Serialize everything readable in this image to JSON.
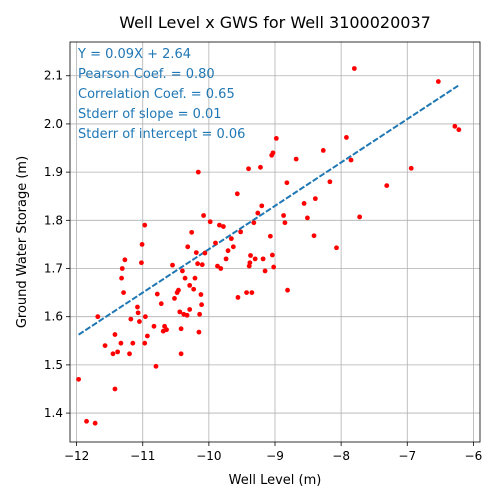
{
  "chart_data": {
    "type": "scatter",
    "title": "Well Level x GWS for Well 3100020037",
    "xlabel": "Well Level (m)",
    "ylabel": "Ground Water Storage (m)",
    "xlim": [
      -12.1,
      -5.9
    ],
    "ylim": [
      1.34,
      2.17
    ],
    "xticks": [
      -12,
      -11,
      -10,
      -9,
      -8,
      -7,
      -6
    ],
    "yticks": [
      1.4,
      1.5,
      1.6,
      1.7,
      1.8,
      1.9,
      2.0,
      2.1
    ],
    "grid": true,
    "point_color": "#ff0000",
    "fit_color": "#1f77b4",
    "annotations": [
      "Y = 0.09X + 2.64",
      "Pearson Coef. = 0.80",
      "Correlation Coef. = 0.65",
      "Stderr of slope = 0.01",
      "Stderr of intercept = 0.06"
    ],
    "fit_line": {
      "slope": 0.09,
      "intercept": 2.64,
      "x": [
        -11.97,
        -6.23
      ]
    },
    "points": [
      [
        -11.97,
        1.47
      ],
      [
        -11.85,
        1.383
      ],
      [
        -11.72,
        1.379
      ],
      [
        -11.68,
        1.6
      ],
      [
        -11.57,
        1.54
      ],
      [
        -11.45,
        1.523
      ],
      [
        -11.42,
        1.45
      ],
      [
        -11.42,
        1.563
      ],
      [
        -11.38,
        1.527
      ],
      [
        -11.33,
        1.545
      ],
      [
        -11.32,
        1.68
      ],
      [
        -11.31,
        1.7
      ],
      [
        -11.29,
        1.65
      ],
      [
        -11.27,
        1.718
      ],
      [
        -11.2,
        1.523
      ],
      [
        -11.18,
        1.595
      ],
      [
        -11.15,
        1.545
      ],
      [
        -11.08,
        1.62
      ],
      [
        -11.07,
        1.608
      ],
      [
        -11.05,
        1.59
      ],
      [
        -11.02,
        1.712
      ],
      [
        -11.01,
        1.75
      ],
      [
        -10.97,
        1.79
      ],
      [
        -10.97,
        1.545
      ],
      [
        -10.96,
        1.6
      ],
      [
        -10.93,
        1.56
      ],
      [
        -10.83,
        1.58
      ],
      [
        -10.8,
        1.497
      ],
      [
        -10.78,
        1.647
      ],
      [
        -10.72,
        1.627
      ],
      [
        -10.69,
        1.57
      ],
      [
        -10.67,
        1.58
      ],
      [
        -10.64,
        1.573
      ],
      [
        -10.55,
        1.707
      ],
      [
        -10.52,
        1.638
      ],
      [
        -10.48,
        1.65
      ],
      [
        -10.46,
        1.655
      ],
      [
        -10.44,
        1.61
      ],
      [
        -10.42,
        1.575
      ],
      [
        -10.42,
        1.523
      ],
      [
        -10.4,
        1.695
      ],
      [
        -10.38,
        1.605
      ],
      [
        -10.36,
        1.68
      ],
      [
        -10.33,
        1.603
      ],
      [
        -10.32,
        1.745
      ],
      [
        -10.29,
        1.665
      ],
      [
        -10.29,
        1.615
      ],
      [
        -10.26,
        1.775
      ],
      [
        -10.23,
        1.657
      ],
      [
        -10.21,
        1.68
      ],
      [
        -10.19,
        1.733
      ],
      [
        -10.17,
        1.71
      ],
      [
        -10.16,
        1.9
      ],
      [
        -10.15,
        1.568
      ],
      [
        -10.14,
        1.605
      ],
      [
        -10.12,
        1.646
      ],
      [
        -10.11,
        1.625
      ],
      [
        -10.1,
        1.708
      ],
      [
        -10.08,
        1.81
      ],
      [
        -10.06,
        1.732
      ],
      [
        -9.98,
        1.797
      ],
      [
        -9.9,
        1.753
      ],
      [
        -9.87,
        1.705
      ],
      [
        -9.84,
        1.79
      ],
      [
        -9.82,
        1.7
      ],
      [
        -9.78,
        1.787
      ],
      [
        -9.74,
        1.72
      ],
      [
        -9.71,
        1.737
      ],
      [
        -9.66,
        1.762
      ],
      [
        -9.63,
        1.745
      ],
      [
        -9.57,
        1.855
      ],
      [
        -9.56,
        1.64
      ],
      [
        -9.52,
        1.776
      ],
      [
        -9.43,
        1.65
      ],
      [
        -9.4,
        1.907
      ],
      [
        -9.39,
        1.705
      ],
      [
        -9.38,
        1.712
      ],
      [
        -9.37,
        1.727
      ],
      [
        -9.35,
        1.65
      ],
      [
        -9.32,
        1.795
      ],
      [
        -9.3,
        1.72
      ],
      [
        -9.26,
        1.815
      ],
      [
        -9.22,
        1.91
      ],
      [
        -9.2,
        1.83
      ],
      [
        -9.18,
        1.72
      ],
      [
        -9.15,
        1.695
      ],
      [
        -9.07,
        1.767
      ],
      [
        -9.05,
        1.935
      ],
      [
        -9.04,
        1.728
      ],
      [
        -9.03,
        1.94
      ],
      [
        -9.02,
        1.703
      ],
      [
        -8.98,
        1.97
      ],
      [
        -8.87,
        1.81
      ],
      [
        -8.85,
        1.795
      ],
      [
        -8.82,
        1.878
      ],
      [
        -8.81,
        1.655
      ],
      [
        -8.68,
        1.927
      ],
      [
        -8.56,
        1.835
      ],
      [
        -8.51,
        1.805
      ],
      [
        -8.41,
        1.768
      ],
      [
        -8.39,
        1.845
      ],
      [
        -8.27,
        1.945
      ],
      [
        -8.17,
        1.88
      ],
      [
        -8.07,
        1.743
      ],
      [
        -7.92,
        1.972
      ],
      [
        -7.85,
        1.925
      ],
      [
        -7.8,
        2.115
      ],
      [
        -7.72,
        1.807
      ],
      [
        -7.31,
        1.872
      ],
      [
        -6.94,
        1.908
      ],
      [
        -6.53,
        2.088
      ],
      [
        -6.28,
        1.995
      ],
      [
        -6.22,
        1.988
      ]
    ]
  }
}
